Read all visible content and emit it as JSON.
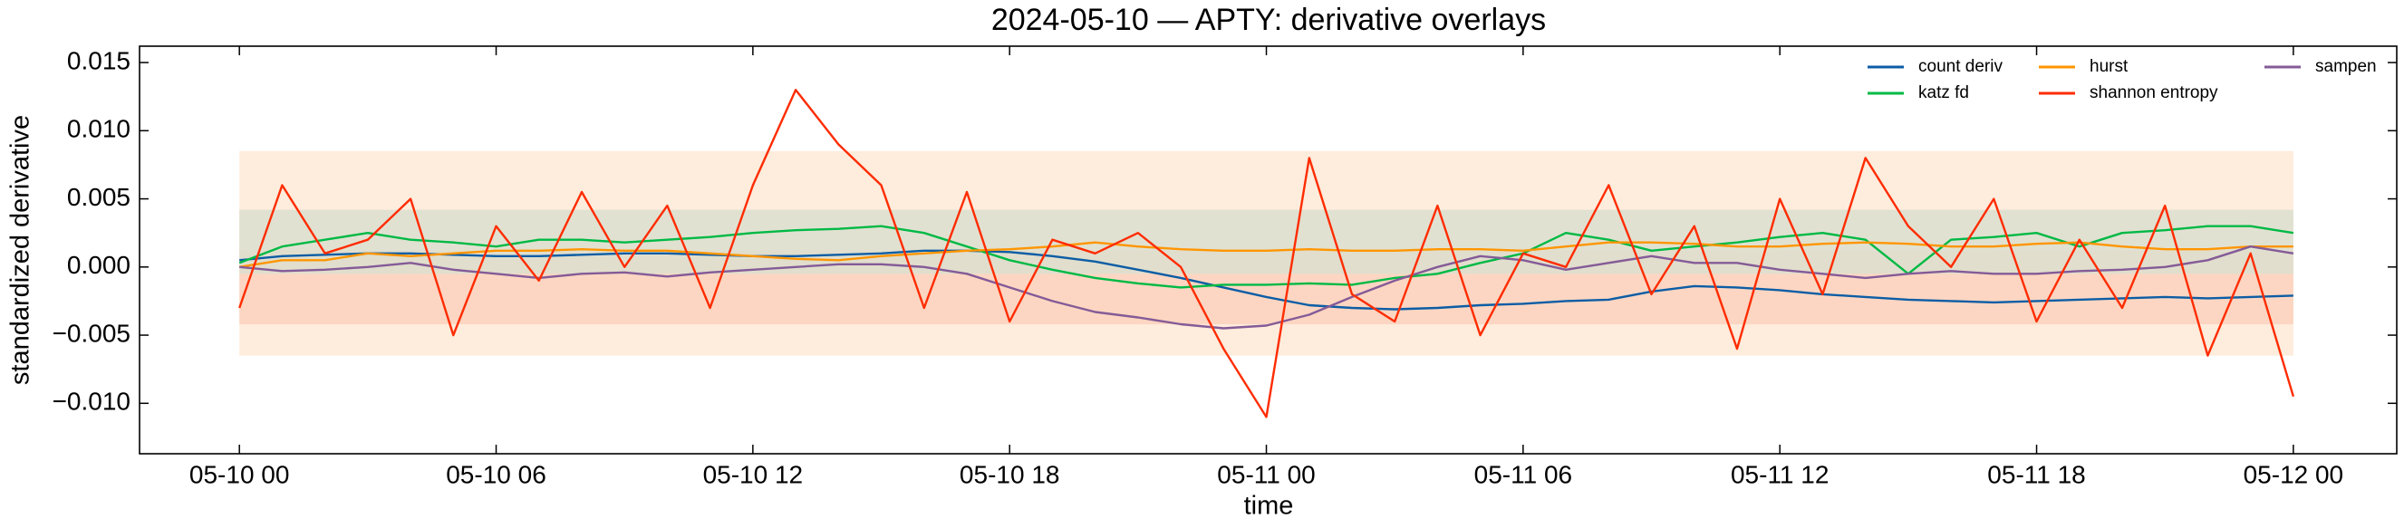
{
  "chart_data": {
    "type": "line",
    "title": "2024-05-10 — APTY: derivative overlays",
    "x_label": "time",
    "y_label": "standardized derivative",
    "x": [
      "05-10 00",
      "05-10 01",
      "05-10 02",
      "05-10 03",
      "05-10 04",
      "05-10 05",
      "05-10 06",
      "05-10 07",
      "05-10 08",
      "05-10 09",
      "05-10 10",
      "05-10 11",
      "05-10 12",
      "05-10 13",
      "05-10 14",
      "05-10 15",
      "05-10 16",
      "05-10 17",
      "05-10 18",
      "05-10 19",
      "05-10 20",
      "05-10 21",
      "05-10 22",
      "05-10 23",
      "05-11 00",
      "05-11 01",
      "05-11 02",
      "05-11 03",
      "05-11 04",
      "05-11 05",
      "05-11 06",
      "05-11 07",
      "05-11 08",
      "05-11 09",
      "05-11 10",
      "05-11 11",
      "05-11 12",
      "05-11 13",
      "05-11 14",
      "05-11 15",
      "05-11 16",
      "05-11 17",
      "05-11 18",
      "05-11 19",
      "05-11 20",
      "05-11 21",
      "05-11 22",
      "05-11 23",
      "05-12 00"
    ],
    "xlim": [
      "05-09 21:40",
      "05-12 02:25"
    ],
    "xticks": [
      "05-10 00",
      "05-10 06",
      "05-10 12",
      "05-10 18",
      "05-11 00",
      "05-11 06",
      "05-11 12",
      "05-11 18",
      "05-12 00"
    ],
    "ylim": [
      -0.0137,
      0.0162
    ],
    "yticks": [
      {
        "value": -0.01,
        "label": "−0.010"
      },
      {
        "value": -0.005,
        "label": "−0.005"
      },
      {
        "value": 0,
        "label": "0.000"
      },
      {
        "value": 0.005,
        "label": "0.005"
      },
      {
        "value": 0.01,
        "label": "0.010"
      },
      0.015
    ],
    "legend": "upper right",
    "bands": [
      {
        "color": "#fee9d6",
        "lower": -0.0065,
        "upper": 0.0085
      },
      {
        "color": "#fcd2bd",
        "lower": -0.0042,
        "upper": 0.0012
      },
      {
        "color": "#dcdfcf",
        "lower": -0.0005,
        "upper": 0.0042
      }
    ],
    "series": [
      {
        "name": "count deriv",
        "color": "#0c5da5",
        "values": [
          0.0005,
          0.0008,
          0.0009,
          0.001,
          0.001,
          0.0009,
          0.0008,
          0.0008,
          0.0009,
          0.001,
          0.001,
          0.0009,
          0.0008,
          0.0008,
          0.0009,
          0.001,
          0.0012,
          0.0012,
          0.0011,
          0.0008,
          0.0004,
          -0.0002,
          -0.0008,
          -0.0015,
          -0.0022,
          -0.0028,
          -0.003,
          -0.0031,
          -0.003,
          -0.0028,
          -0.0027,
          -0.0025,
          -0.0024,
          -0.0018,
          -0.0014,
          -0.0015,
          -0.0017,
          -0.002,
          -0.0022,
          -0.0024,
          -0.0025,
          -0.0026,
          -0.0025,
          -0.0024,
          -0.0023,
          -0.0022,
          -0.0023,
          -0.0022,
          -0.0021
        ]
      },
      {
        "name": "katz fd",
        "color": "#00b945",
        "values": [
          0.0003,
          0.0015,
          0.002,
          0.0025,
          0.002,
          0.0018,
          0.0015,
          0.002,
          0.002,
          0.0018,
          0.002,
          0.0022,
          0.0025,
          0.0027,
          0.0028,
          0.003,
          0.0025,
          0.0015,
          0.0005,
          -0.0002,
          -0.0008,
          -0.0012,
          -0.0015,
          -0.0013,
          -0.0013,
          -0.0012,
          -0.0013,
          -0.0008,
          -0.0005,
          0.0003,
          0.001,
          0.0025,
          0.002,
          0.0012,
          0.0015,
          0.0018,
          0.0022,
          0.0025,
          0.002,
          -0.0005,
          0.002,
          0.0022,
          0.0025,
          0.0015,
          0.0025,
          0.0027,
          0.003,
          0.003,
          0.0025
        ]
      },
      {
        "name": "hurst",
        "color": "#ff9500",
        "values": [
          0.0,
          0.0005,
          0.0005,
          0.001,
          0.0008,
          0.001,
          0.0012,
          0.0012,
          0.0013,
          0.0012,
          0.0012,
          0.001,
          0.0008,
          0.0006,
          0.0005,
          0.0008,
          0.001,
          0.0012,
          0.0013,
          0.0015,
          0.0018,
          0.0015,
          0.0013,
          0.0012,
          0.0012,
          0.0013,
          0.0012,
          0.0012,
          0.0013,
          0.0013,
          0.0012,
          0.0015,
          0.0018,
          0.0018,
          0.0017,
          0.0015,
          0.0015,
          0.0017,
          0.0018,
          0.0017,
          0.0015,
          0.0015,
          0.0017,
          0.0018,
          0.0015,
          0.0013,
          0.0013,
          0.0015,
          0.0015
        ]
      },
      {
        "name": "shannon entropy",
        "color": "#ff2c00",
        "values": [
          -0.003,
          0.006,
          0.001,
          0.002,
          0.005,
          -0.005,
          0.003,
          -0.001,
          0.0055,
          0.0,
          0.0045,
          -0.003,
          0.006,
          0.013,
          0.009,
          0.006,
          -0.003,
          0.0055,
          -0.004,
          0.002,
          0.001,
          0.0025,
          0.0,
          -0.006,
          -0.011,
          0.008,
          -0.002,
          -0.004,
          0.0045,
          -0.005,
          0.001,
          0.0,
          0.006,
          -0.002,
          0.003,
          -0.006,
          0.005,
          -0.002,
          0.008,
          0.003,
          0.0,
          0.005,
          -0.004,
          0.002,
          -0.003,
          0.0045,
          -0.0065,
          0.001,
          -0.0095
        ]
      },
      {
        "name": "sampen",
        "color": "#845b97",
        "values": [
          0.0,
          -0.0003,
          -0.0002,
          0.0,
          0.0003,
          -0.0002,
          -0.0005,
          -0.0008,
          -0.0005,
          -0.0004,
          -0.0007,
          -0.0004,
          -0.0002,
          0.0,
          0.0002,
          0.0002,
          0.0,
          -0.0005,
          -0.0015,
          -0.0025,
          -0.0033,
          -0.0037,
          -0.0042,
          -0.0045,
          -0.0043,
          -0.0035,
          -0.0022,
          -0.001,
          0.0,
          0.0008,
          0.0005,
          -0.0002,
          0.0003,
          0.0008,
          0.0003,
          0.0003,
          -0.0002,
          -0.0005,
          -0.0008,
          -0.0005,
          -0.0003,
          -0.0005,
          -0.0005,
          -0.0003,
          -0.0002,
          0.0,
          0.0005,
          0.0015,
          0.001
        ]
      }
    ]
  }
}
